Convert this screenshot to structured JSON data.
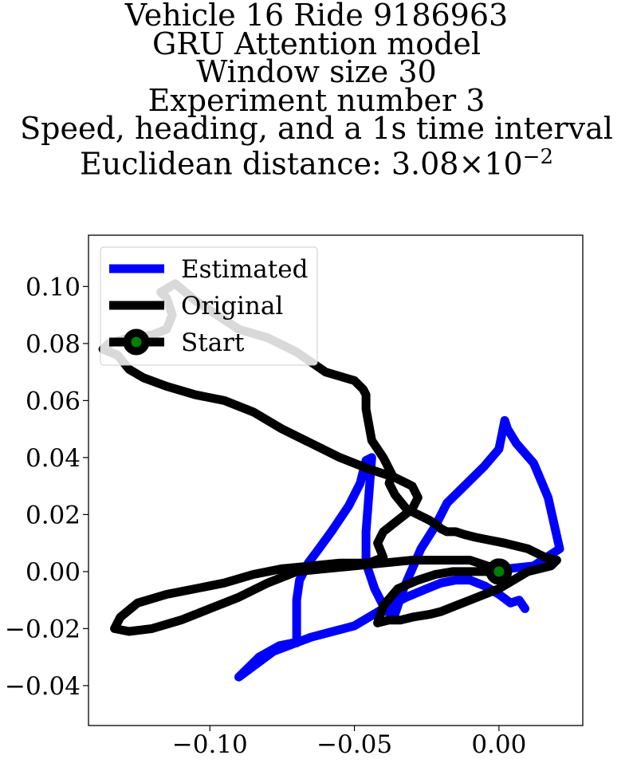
{
  "chart_data": {
    "type": "line",
    "title_lines": [
      "Vehicle 16 Ride 9186963",
      "GRU Attention model",
      "Window size 30",
      "Experiment number 3",
      "Speed, heading, and a 1s time interval"
    ],
    "title_distance_prefix": "Euclidean distance: 3.08",
    "title_distance_mult": "×",
    "title_distance_base": "10",
    "title_distance_exp": "−2",
    "xlabel": "",
    "ylabel": "",
    "xlim": [
      -0.142,
      0.029
    ],
    "ylim": [
      -0.054,
      0.118
    ],
    "xticks": [
      {
        "value": -0.1,
        "label": "−0.10"
      },
      {
        "value": -0.05,
        "label": "−0.05"
      },
      {
        "value": 0.0,
        "label": "0.00"
      }
    ],
    "yticks": [
      {
        "value": 0.1,
        "label": "0.10"
      },
      {
        "value": 0.08,
        "label": "0.08"
      },
      {
        "value": 0.06,
        "label": "0.06"
      },
      {
        "value": 0.04,
        "label": "0.04"
      },
      {
        "value": 0.02,
        "label": "0.02"
      },
      {
        "value": 0.0,
        "label": "0.00"
      },
      {
        "value": -0.02,
        "label": "−0.02"
      },
      {
        "value": -0.04,
        "label": "−0.04"
      }
    ],
    "grid": false,
    "legend_position": "top-left",
    "series": [
      {
        "name": "Estimated",
        "color": "#0000ff",
        "x": [
          0.0,
          0.003,
          0.012,
          0.021,
          0.017,
          0.012,
          0.006,
          0.003,
          0.002,
          0.0,
          -0.005,
          -0.012,
          -0.018,
          -0.022,
          -0.027,
          -0.03,
          -0.033,
          -0.035,
          -0.036,
          -0.039,
          -0.043,
          -0.046,
          -0.046,
          -0.044,
          -0.046,
          -0.048,
          -0.052,
          -0.058,
          -0.063,
          -0.066,
          -0.069,
          -0.07,
          -0.07,
          -0.07,
          -0.071,
          -0.076,
          -0.083,
          -0.09,
          -0.078,
          -0.065,
          -0.05,
          -0.04,
          -0.032,
          -0.025,
          -0.02,
          -0.015,
          -0.01,
          -0.005,
          0.0,
          0.004,
          0.007,
          0.009
        ],
        "y": [
          0.0,
          0.001,
          0.002,
          0.008,
          0.026,
          0.038,
          0.045,
          0.05,
          0.053,
          0.043,
          0.037,
          0.03,
          0.024,
          0.016,
          0.008,
          0.001,
          -0.006,
          -0.012,
          -0.015,
          -0.014,
          -0.006,
          0.003,
          0.014,
          0.04,
          0.039,
          0.031,
          0.023,
          0.014,
          0.007,
          0.003,
          -0.003,
          -0.01,
          -0.018,
          -0.025,
          -0.025,
          -0.026,
          -0.03,
          -0.037,
          -0.028,
          -0.023,
          -0.019,
          -0.013,
          -0.009,
          -0.006,
          -0.004,
          -0.003,
          -0.003,
          -0.005,
          -0.008,
          -0.011,
          -0.01,
          -0.013
        ]
      },
      {
        "name": "Original",
        "color": "#000000",
        "x": [
          0.0,
          -0.004,
          -0.01,
          -0.02,
          -0.03,
          -0.04,
          -0.05,
          -0.06,
          -0.07,
          -0.08,
          -0.09,
          -0.1,
          -0.11,
          -0.12,
          -0.128,
          -0.133,
          -0.131,
          -0.125,
          -0.115,
          -0.105,
          -0.095,
          -0.085,
          -0.075,
          -0.065,
          -0.055,
          -0.045,
          -0.04,
          -0.042,
          -0.04,
          -0.035,
          -0.03,
          -0.028,
          -0.03,
          -0.036,
          -0.045,
          -0.055,
          -0.065,
          -0.075,
          -0.085,
          -0.095,
          -0.105,
          -0.115,
          -0.123,
          -0.128,
          -0.132,
          -0.137,
          -0.135,
          -0.128,
          -0.12,
          -0.115,
          -0.113,
          -0.115,
          -0.117,
          -0.112,
          -0.105,
          -0.09,
          -0.08,
          -0.07,
          -0.06,
          -0.05,
          -0.047,
          -0.046,
          -0.046,
          -0.044,
          -0.04,
          -0.037,
          -0.038,
          -0.036,
          -0.032,
          -0.028,
          -0.024,
          -0.021,
          -0.02,
          -0.018,
          -0.015,
          -0.012,
          -0.008,
          -0.003,
          0.002,
          0.01,
          0.016,
          0.02,
          0.018,
          0.01,
          0.005,
          0.0,
          -0.005,
          -0.01,
          -0.015,
          -0.02,
          -0.024,
          -0.03,
          -0.034,
          -0.038,
          -0.042,
          -0.04,
          -0.035,
          -0.028,
          -0.022,
          -0.016,
          -0.01,
          -0.006,
          0.0
        ],
        "y": [
          0.0,
          0.002,
          0.004,
          0.004,
          0.004,
          0.003,
          0.002,
          0.001,
          0.0,
          -0.004,
          -0.009,
          -0.013,
          -0.017,
          -0.02,
          -0.021,
          -0.02,
          -0.016,
          -0.011,
          -0.008,
          -0.006,
          -0.004,
          -0.001,
          0.001,
          0.002,
          0.003,
          0.003,
          0.005,
          0.01,
          0.014,
          0.018,
          0.022,
          0.026,
          0.03,
          0.033,
          0.036,
          0.04,
          0.045,
          0.05,
          0.056,
          0.06,
          0.062,
          0.065,
          0.068,
          0.071,
          0.076,
          0.078,
          0.08,
          0.082,
          0.083,
          0.085,
          0.09,
          0.096,
          0.098,
          0.101,
          0.095,
          0.085,
          0.082,
          0.077,
          0.07,
          0.067,
          0.064,
          0.062,
          0.057,
          0.046,
          0.04,
          0.034,
          0.031,
          0.027,
          0.022,
          0.02,
          0.018,
          0.016,
          0.015,
          0.014,
          0.014,
          0.013,
          0.012,
          0.011,
          0.01,
          0.008,
          0.005,
          0.004,
          0.002,
          0.0,
          -0.003,
          -0.006,
          -0.008,
          -0.01,
          -0.012,
          -0.014,
          -0.015,
          -0.016,
          -0.017,
          -0.017,
          -0.018,
          -0.012,
          -0.006,
          -0.003,
          -0.001,
          0.0,
          0.0,
          0.0,
          0.0
        ]
      }
    ],
    "start": {
      "name": "Start",
      "x": 0.0,
      "y": 0.0,
      "marker_edge": "#000000",
      "marker_face": "#008000"
    }
  }
}
